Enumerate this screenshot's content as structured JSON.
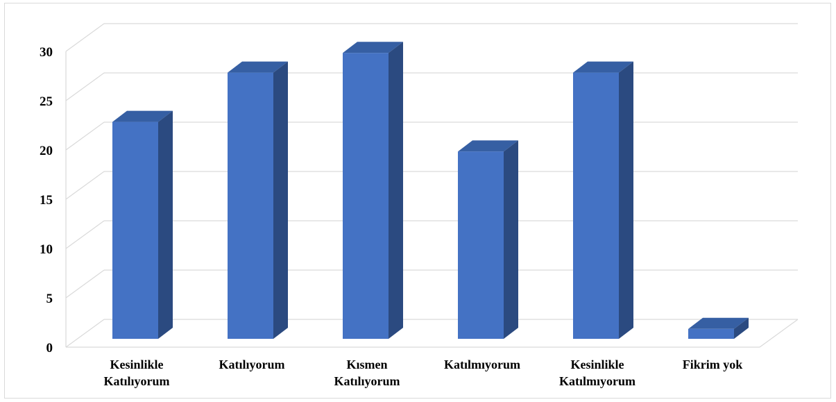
{
  "chart_data": {
    "type": "bar",
    "title": "",
    "xlabel": "",
    "ylabel": "",
    "categories": [
      [
        "Kesinlikle",
        "Katılıyorum"
      ],
      [
        "Katılıyorum"
      ],
      [
        "Kısmen",
        "Katılıyorum"
      ],
      [
        "Katılmıyorum"
      ],
      [
        "Kesinlikle",
        "Katılmıyorum"
      ],
      [
        "Fikrim yok"
      ]
    ],
    "values": [
      22,
      27,
      29,
      19,
      27,
      1
    ],
    "ylim": [
      0,
      30
    ],
    "yticks": [
      0,
      5,
      10,
      15,
      20,
      25,
      30
    ],
    "grid": true,
    "legend": "none",
    "three_d": true,
    "colors": {
      "bar_front": "#4472C4",
      "bar_side": "#2B4A80",
      "bar_top": "#365FA3",
      "grid": "#d9d9d9"
    }
  }
}
